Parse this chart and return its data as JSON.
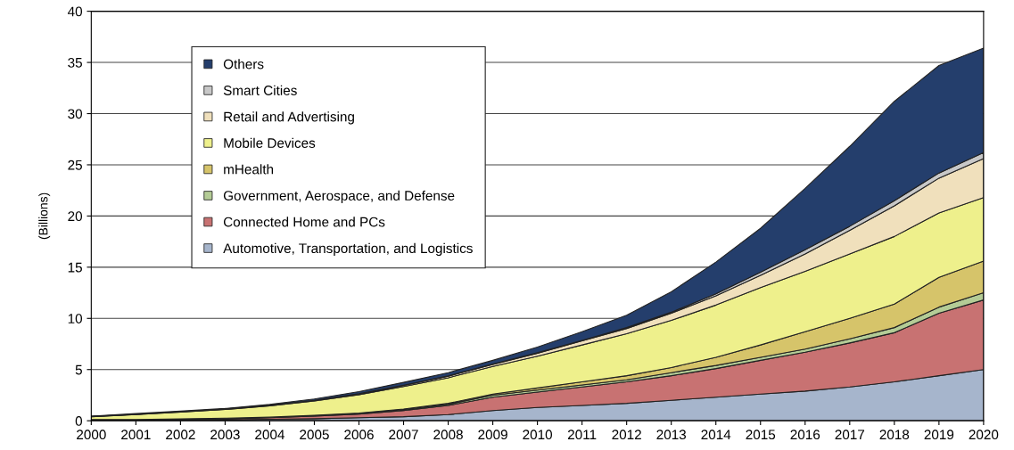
{
  "chart_data": {
    "type": "area",
    "stacked": true,
    "ylabel": "(Billions)",
    "x": [
      2000,
      2001,
      2002,
      2003,
      2004,
      2005,
      2006,
      2007,
      2008,
      2009,
      2010,
      2011,
      2012,
      2013,
      2014,
      2015,
      2016,
      2017,
      2018,
      2019,
      2020
    ],
    "xlim": [
      2000,
      2020
    ],
    "xticks": [
      2000,
      2001,
      2002,
      2003,
      2004,
      2005,
      2006,
      2007,
      2008,
      2009,
      2010,
      2011,
      2012,
      2013,
      2014,
      2015,
      2016,
      2017,
      2018,
      2019,
      2020
    ],
    "ylim": [
      0,
      40
    ],
    "yticks": [
      0,
      5,
      10,
      15,
      20,
      25,
      30,
      35,
      40
    ],
    "grid": "y",
    "legend": "top left",
    "series": [
      {
        "name": "Automotive, Transportation, and Logistics",
        "color": "#a6b5cc",
        "values": [
          0.05,
          0.05,
          0.05,
          0.1,
          0.15,
          0.2,
          0.3,
          0.4,
          0.6,
          1.0,
          1.3,
          1.5,
          1.7,
          2.0,
          2.3,
          2.6,
          2.9,
          3.3,
          3.8,
          4.4,
          5.0
        ]
      },
      {
        "name": "Connected Home and PCs",
        "color": "#c87272",
        "values": [
          0.05,
          0.05,
          0.1,
          0.1,
          0.15,
          0.25,
          0.35,
          0.6,
          0.9,
          1.3,
          1.5,
          1.8,
          2.1,
          2.4,
          2.8,
          3.3,
          3.8,
          4.3,
          4.8,
          6.1,
          6.8
        ]
      },
      {
        "name": "Government, Aerospace, and Defense",
        "color": "#b4cc96",
        "values": [
          0.02,
          0.02,
          0.02,
          0.03,
          0.03,
          0.05,
          0.05,
          0.08,
          0.1,
          0.2,
          0.2,
          0.2,
          0.2,
          0.3,
          0.3,
          0.3,
          0.3,
          0.4,
          0.5,
          0.6,
          0.7
        ]
      },
      {
        "name": "mHealth",
        "color": "#d6c46a",
        "values": [
          0.01,
          0.01,
          0.01,
          0.02,
          0.02,
          0.03,
          0.05,
          0.07,
          0.1,
          0.1,
          0.2,
          0.3,
          0.4,
          0.5,
          0.8,
          1.2,
          1.7,
          2.0,
          2.3,
          2.9,
          3.1
        ]
      },
      {
        "name": "Mobile Devices",
        "color": "#eef08c",
        "values": [
          0.27,
          0.47,
          0.67,
          0.85,
          1.1,
          1.4,
          1.8,
          2.2,
          2.5,
          2.7,
          3.1,
          3.6,
          4.1,
          4.6,
          5.1,
          5.6,
          5.9,
          6.3,
          6.6,
          6.3,
          6.2
        ]
      },
      {
        "name": "Retail and Advertising",
        "color": "#f0e0bc",
        "values": [
          0.02,
          0.03,
          0.03,
          0.04,
          0.05,
          0.06,
          0.08,
          0.1,
          0.15,
          0.2,
          0.3,
          0.4,
          0.5,
          0.7,
          0.9,
          1.2,
          1.7,
          2.3,
          3.0,
          3.4,
          3.8
        ]
      },
      {
        "name": "Smart Cities",
        "color": "#c8c8c8",
        "values": [
          0.01,
          0.01,
          0.01,
          0.01,
          0.01,
          0.01,
          0.01,
          0.02,
          0.03,
          0.05,
          0.05,
          0.05,
          0.1,
          0.1,
          0.2,
          0.3,
          0.4,
          0.4,
          0.5,
          0.5,
          0.6
        ]
      },
      {
        "name": "Others",
        "color": "#243e6c",
        "values": [
          0.02,
          0.06,
          0.06,
          0.05,
          0.09,
          0.13,
          0.21,
          0.28,
          0.32,
          0.35,
          0.55,
          0.85,
          1.2,
          2.0,
          3.1,
          4.3,
          6.0,
          7.8,
          9.7,
          10.5,
          10.2
        ]
      }
    ]
  }
}
